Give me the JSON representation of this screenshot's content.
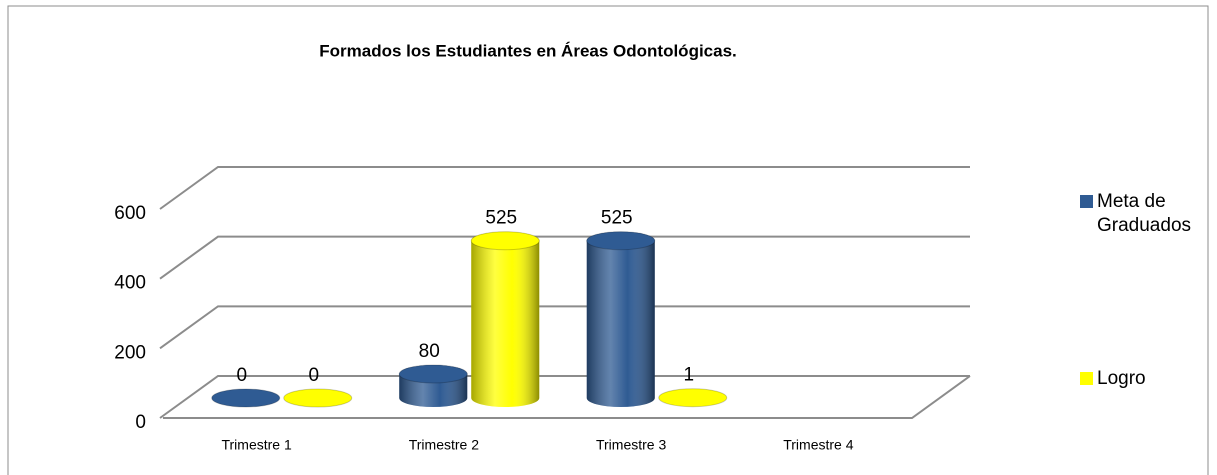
{
  "chart_data": {
    "type": "bar3d-cylinder",
    "title": "Formados los Estudiantes en Áreas Odontológicas.",
    "categories": [
      "Trimestre 1",
      "Trimestre 2",
      "Trimestre 3",
      "Trimestre 4"
    ],
    "series": [
      {
        "name": "Meta de Graduados",
        "color": "#2f5b93",
        "values": [
          0,
          80,
          525,
          null
        ]
      },
      {
        "name": "Logro",
        "color": "#ffff00",
        "values": [
          0,
          525,
          1,
          null
        ]
      }
    ],
    "ylim": [
      0,
      600
    ],
    "yticks": [
      0,
      200,
      400,
      600
    ],
    "grid": true,
    "legend": "right"
  }
}
